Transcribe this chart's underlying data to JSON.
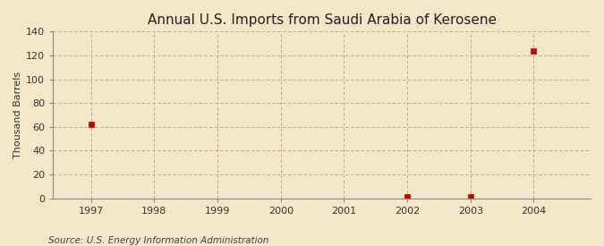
{
  "title": "Annual U.S. Imports from Saudi Arabia of Kerosene",
  "ylabel": "Thousand Barrels",
  "source": "Source: U.S. Energy Information Administration",
  "background_color": "#f5e8c8",
  "plot_bg_color": "#f0e6c0",
  "years": [
    1997,
    2002,
    2003,
    2004
  ],
  "values": [
    62,
    1,
    1,
    124
  ],
  "xlim": [
    1996.4,
    2004.9
  ],
  "ylim": [
    0,
    140
  ],
  "yticks": [
    0,
    20,
    40,
    60,
    80,
    100,
    120,
    140
  ],
  "xticks": [
    1997,
    1998,
    1999,
    2000,
    2001,
    2002,
    2003,
    2004
  ],
  "marker_color": "#cc0000",
  "marker_size": 4,
  "grid_color": "#b0a080",
  "title_fontsize": 11,
  "label_fontsize": 8,
  "tick_fontsize": 8,
  "source_fontsize": 7.5
}
